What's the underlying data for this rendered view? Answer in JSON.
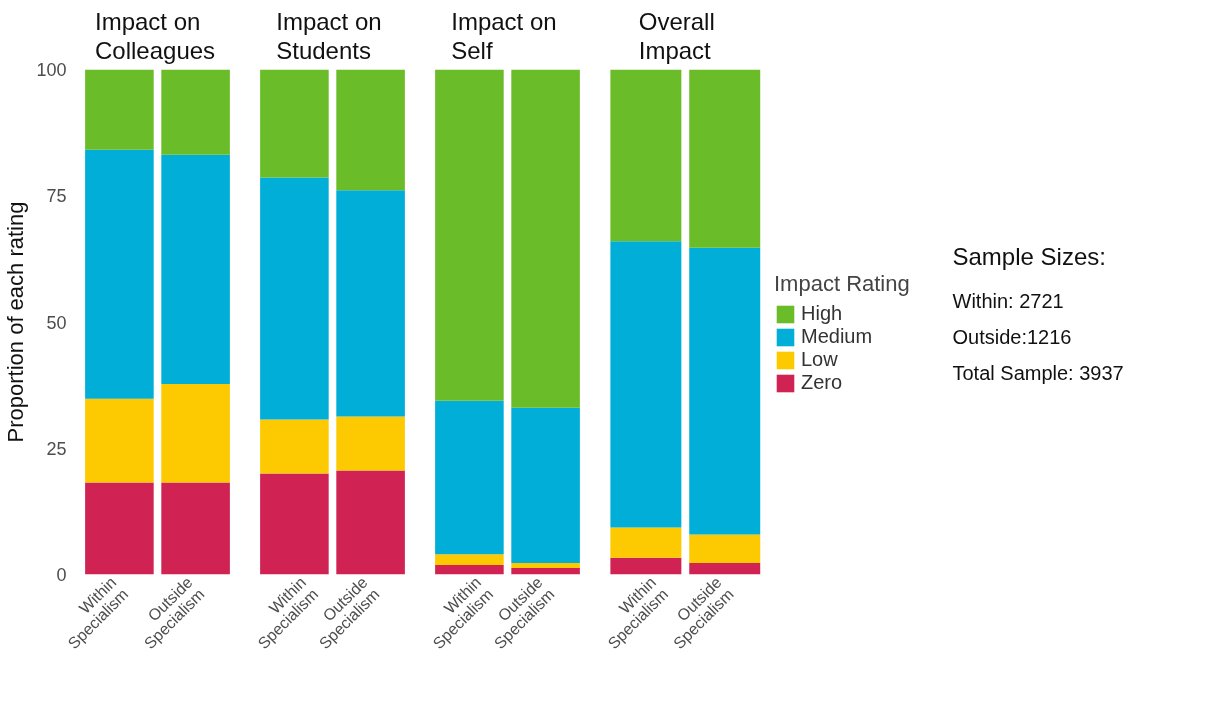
{
  "chart_data": [
    {
      "type": "bar",
      "stacked": true,
      "title": "Impact on\nColleagues",
      "ylabel": "Proportion of each rating",
      "categories": [
        "Within\nSpecialism",
        "Outside\nSpecialism"
      ],
      "ylim": [
        0,
        100
      ],
      "yticks": [
        0,
        25,
        50,
        75,
        100
      ],
      "grid": false,
      "series": [
        {
          "color": "#d02354",
          "values": [
            18.2,
            18.2
          ]
        },
        {
          "color": "#fdc900",
          "values": [
            16.6,
            19.5
          ]
        },
        {
          "color": "#00aed7",
          "values": [
            49.3,
            45.4
          ]
        },
        {
          "color": "#6abd28",
          "values": [
            15.9,
            16.9
          ]
        }
      ]
    },
    {
      "type": "bar",
      "stacked": true,
      "title": "Impact on\nStudents",
      "categories": [
        "Within\nSpecialism",
        "Outside\nSpecialism"
      ],
      "ylim": [
        0,
        100
      ],
      "yticks": [
        0,
        25,
        50,
        75,
        100
      ],
      "grid": false,
      "tick_labels": "x",
      "series": [
        {
          "color": "#d02354",
          "values": [
            20.0,
            20.6
          ]
        },
        {
          "color": "#fdc900",
          "values": [
            10.7,
            10.7
          ]
        },
        {
          "color": "#00aed7",
          "values": [
            47.9,
            44.8
          ]
        },
        {
          "color": "#6abd28",
          "values": [
            21.4,
            23.9
          ]
        }
      ]
    },
    {
      "type": "bar",
      "stacked": true,
      "title": "Impact on\nSelf",
      "categories": [
        "Within\nSpecialism",
        "Outside\nSpecialism"
      ],
      "ylim": [
        0,
        100
      ],
      "yticks": [
        0,
        25,
        50,
        75,
        100
      ],
      "grid": false,
      "tick_labels": "x",
      "series": [
        {
          "color": "#d02354",
          "values": [
            1.9,
            1.3
          ]
        },
        {
          "color": "#fdc900",
          "values": [
            2.1,
            1.0
          ]
        },
        {
          "color": "#00aed7",
          "values": [
            30.4,
            30.7
          ]
        },
        {
          "color": "#6abd28",
          "values": [
            65.6,
            67.0
          ]
        }
      ]
    },
    {
      "type": "bar",
      "stacked": true,
      "title": "Overall\nImpact",
      "categories": [
        "Within\nSpecialism",
        "Outside\nSpecialism"
      ],
      "ylim": [
        0,
        100
      ],
      "yticks": [
        0,
        25,
        50,
        75,
        100
      ],
      "grid": false,
      "tick_labels": "x",
      "legend": "right",
      "legend_title": "Impact Rating",
      "annotations": [
        "Sample Sizes:",
        "Within: 2721",
        "Outside:1216",
        "Total Sample: 3937"
      ],
      "series": [
        {
          "name": "Zero",
          "color": "#d02354",
          "values": [
            3.3,
            2.3
          ]
        },
        {
          "name": "Low",
          "color": "#fdc900",
          "values": [
            6.0,
            5.6
          ]
        },
        {
          "name": "Medium",
          "color": "#00aed7",
          "values": [
            56.7,
            56.8
          ]
        },
        {
          "name": "High",
          "color": "#6abd28",
          "values": [
            34.0,
            35.3
          ]
        }
      ]
    }
  ]
}
